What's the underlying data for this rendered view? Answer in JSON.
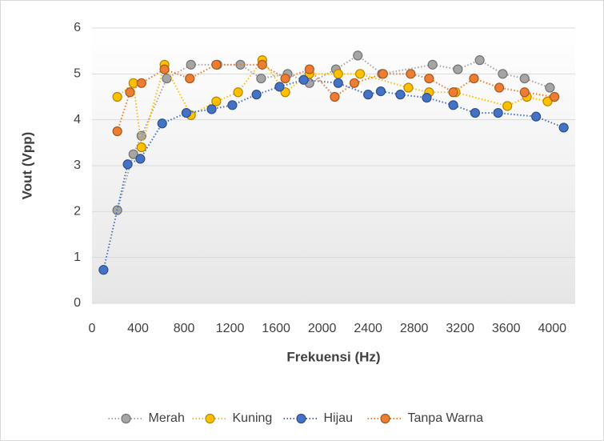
{
  "chart_data": {
    "type": "scatter",
    "x_label": "Frekuensi (Hz)",
    "y_label": "Vout (Vpp)",
    "xlim": [
      0,
      4200
    ],
    "xticks": [
      0,
      400,
      800,
      1200,
      1600,
      2000,
      2400,
      2800,
      3200,
      3600,
      4000
    ],
    "ylim": [
      0,
      6
    ],
    "yticks": [
      0,
      1,
      2,
      3,
      4,
      5,
      6
    ],
    "grid": true,
    "legend": "bottom",
    "series": [
      {
        "name": "Merah",
        "color": "#a5a5a5",
        "x": [
          220,
          360,
          430,
          650,
          860,
          1090,
          1290,
          1470,
          1700,
          1890,
          2120,
          2310,
          2520,
          2960,
          3180,
          3370,
          3570,
          3760,
          3980
        ],
        "values": [
          2.03,
          3.25,
          3.65,
          4.9,
          5.2,
          5.2,
          5.2,
          4.9,
          5.0,
          4.8,
          5.1,
          5.4,
          5.0,
          5.2,
          5.1,
          5.3,
          5.0,
          4.9,
          4.7
        ]
      },
      {
        "name": "Kuning",
        "color": "#ffc000",
        "x": [
          220,
          360,
          430,
          630,
          860,
          1080,
          1270,
          1480,
          1680,
          1890,
          2140,
          2330,
          2750,
          2930,
          3160,
          3610,
          3780,
          3960
        ],
        "values": [
          4.5,
          4.8,
          3.4,
          5.2,
          4.1,
          4.4,
          4.6,
          5.3,
          4.6,
          5.0,
          5.0,
          5.0,
          4.7,
          4.6,
          4.6,
          4.3,
          4.5,
          4.4
        ]
      },
      {
        "name": "Hijau",
        "color": "#4472c4",
        "x": [
          100,
          310,
          420,
          610,
          820,
          1040,
          1220,
          1430,
          1630,
          1840,
          2140,
          2400,
          2510,
          2680,
          2910,
          3140,
          3330,
          3530,
          3860,
          4100
        ],
        "values": [
          0.73,
          3.03,
          3.15,
          3.92,
          4.15,
          4.23,
          4.32,
          4.55,
          4.72,
          4.87,
          4.8,
          4.55,
          4.62,
          4.55,
          4.48,
          4.32,
          4.15,
          4.15,
          4.07,
          3.83
        ]
      },
      {
        "name": "Tanpa Warna",
        "color": "#ed7d31",
        "x": [
          220,
          330,
          430,
          630,
          850,
          1080,
          1480,
          1680,
          1890,
          2110,
          2280,
          2530,
          2770,
          2930,
          3140,
          3320,
          3540,
          3760,
          4020
        ],
        "values": [
          3.75,
          4.6,
          4.8,
          5.1,
          4.9,
          5.2,
          5.2,
          4.9,
          5.1,
          4.5,
          4.8,
          5.0,
          5.0,
          4.9,
          4.6,
          4.9,
          4.7,
          4.6,
          4.5
        ]
      }
    ]
  }
}
